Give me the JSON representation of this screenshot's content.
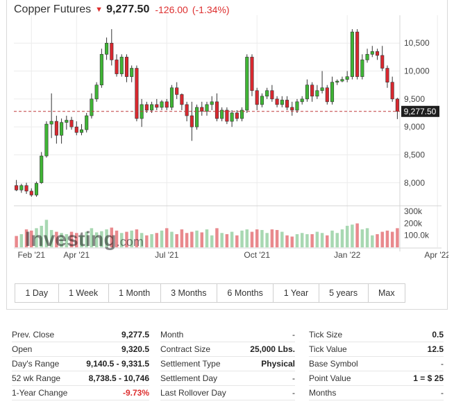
{
  "header": {
    "title": "Copper Futures",
    "arrow_icon": "down-arrow-icon",
    "price": "9,277.50",
    "change": "-126.00",
    "change_pct": "(-1.34%)"
  },
  "watermark": {
    "brand_main": "Investing",
    "brand_suffix": ".com"
  },
  "colors": {
    "up": "#3fb535",
    "down": "#d9282f",
    "volume_up": "#a8d8b2",
    "volume_down": "#e9898d",
    "last_price_line": "#c0393b",
    "last_price_tag": "#1e1e1e"
  },
  "chart_data": {
    "type": "candlestick",
    "title": "Copper Futures",
    "last_price": 9277.5,
    "last_price_label": "9,277.50",
    "y_ticks": [
      {
        "value": 8000,
        "label": "8,000"
      },
      {
        "value": 8500,
        "label": "8,500"
      },
      {
        "value": 9000,
        "label": "9,000"
      },
      {
        "value": 9500,
        "label": "9,500"
      },
      {
        "value": 10000,
        "label": "10,000"
      },
      {
        "value": 10500,
        "label": "10,500"
      }
    ],
    "y_range": [
      7600,
      10900
    ],
    "volume_ticks": [
      {
        "value": 100000,
        "label": "100.0k"
      },
      {
        "value": 200000,
        "label": "200k"
      },
      {
        "value": 300000,
        "label": "300k"
      }
    ],
    "volume_range": [
      0,
      330000
    ],
    "x_ticks": [
      {
        "index": 3,
        "label": "Feb '21"
      },
      {
        "index": 12,
        "label": "Apr '21"
      },
      {
        "index": 30,
        "label": "Jul '21"
      },
      {
        "index": 48,
        "label": "Oct '21"
      },
      {
        "index": 66,
        "label": "Jan '22"
      },
      {
        "index": 84,
        "label": "Apr '22"
      }
    ],
    "candles": [
      {
        "o": 7950,
        "h": 8050,
        "l": 7850,
        "c": 7870,
        "v": 95000
      },
      {
        "o": 7870,
        "h": 7980,
        "l": 7820,
        "c": 7950,
        "v": 110000
      },
      {
        "o": 7950,
        "h": 8000,
        "l": 7800,
        "c": 7850,
        "v": 150000
      },
      {
        "o": 7850,
        "h": 7900,
        "l": 7750,
        "c": 7780,
        "v": 140000
      },
      {
        "o": 7780,
        "h": 8020,
        "l": 7750,
        "c": 7990,
        "v": 160000
      },
      {
        "o": 8000,
        "h": 8550,
        "l": 7980,
        "c": 8480,
        "v": 180000
      },
      {
        "o": 8480,
        "h": 9100,
        "l": 8450,
        "c": 9050,
        "v": 230000
      },
      {
        "o": 9050,
        "h": 9600,
        "l": 8800,
        "c": 9100,
        "v": 145000
      },
      {
        "o": 9100,
        "h": 9200,
        "l": 8700,
        "c": 8850,
        "v": 130000
      },
      {
        "o": 8850,
        "h": 9150,
        "l": 8700,
        "c": 9080,
        "v": 120000
      },
      {
        "o": 9080,
        "h": 9200,
        "l": 8950,
        "c": 9120,
        "v": 110000
      },
      {
        "o": 9120,
        "h": 9180,
        "l": 8950,
        "c": 9000,
        "v": 130000
      },
      {
        "o": 9000,
        "h": 9100,
        "l": 8850,
        "c": 8900,
        "v": 120000
      },
      {
        "o": 8900,
        "h": 9050,
        "l": 8850,
        "c": 8950,
        "v": 100000
      },
      {
        "o": 8950,
        "h": 9250,
        "l": 8900,
        "c": 9200,
        "v": 130000
      },
      {
        "o": 9200,
        "h": 9600,
        "l": 9150,
        "c": 9500,
        "v": 160000
      },
      {
        "o": 9500,
        "h": 9800,
        "l": 9450,
        "c": 9750,
        "v": 125000
      },
      {
        "o": 9750,
        "h": 10400,
        "l": 9700,
        "c": 10300,
        "v": 135000
      },
      {
        "o": 10300,
        "h": 10600,
        "l": 10200,
        "c": 10500,
        "v": 150000
      },
      {
        "o": 10500,
        "h": 10750,
        "l": 10100,
        "c": 10200,
        "v": 165000
      },
      {
        "o": 10200,
        "h": 10300,
        "l": 9900,
        "c": 9950,
        "v": 140000
      },
      {
        "o": 9950,
        "h": 10300,
        "l": 9900,
        "c": 10250,
        "v": 120000
      },
      {
        "o": 10250,
        "h": 10300,
        "l": 9800,
        "c": 9900,
        "v": 130000
      },
      {
        "o": 9900,
        "h": 10100,
        "l": 9800,
        "c": 10050,
        "v": 140000
      },
      {
        "o": 10050,
        "h": 10100,
        "l": 9100,
        "c": 9150,
        "v": 150000
      },
      {
        "o": 9150,
        "h": 9500,
        "l": 9000,
        "c": 9400,
        "v": 120000
      },
      {
        "o": 9400,
        "h": 9450,
        "l": 9250,
        "c": 9300,
        "v": 100000
      },
      {
        "o": 9300,
        "h": 9450,
        "l": 9250,
        "c": 9400,
        "v": 110000
      },
      {
        "o": 9400,
        "h": 9500,
        "l": 9300,
        "c": 9350,
        "v": 120000
      },
      {
        "o": 9350,
        "h": 9480,
        "l": 9300,
        "c": 9450,
        "v": 140000
      },
      {
        "o": 9450,
        "h": 9500,
        "l": 9300,
        "c": 9350,
        "v": 160000
      },
      {
        "o": 9350,
        "h": 9750,
        "l": 9300,
        "c": 9700,
        "v": 130000
      },
      {
        "o": 9700,
        "h": 9800,
        "l": 9500,
        "c": 9580,
        "v": 110000
      },
      {
        "o": 9580,
        "h": 9600,
        "l": 9300,
        "c": 9400,
        "v": 150000
      },
      {
        "o": 9400,
        "h": 9450,
        "l": 9100,
        "c": 9200,
        "v": 120000
      },
      {
        "o": 9200,
        "h": 9450,
        "l": 8750,
        "c": 9000,
        "v": 130000
      },
      {
        "o": 9000,
        "h": 9400,
        "l": 8950,
        "c": 9350,
        "v": 140000
      },
      {
        "o": 9350,
        "h": 9450,
        "l": 9200,
        "c": 9280,
        "v": 125000
      },
      {
        "o": 9280,
        "h": 9450,
        "l": 9200,
        "c": 9400,
        "v": 150000
      },
      {
        "o": 9400,
        "h": 9550,
        "l": 9300,
        "c": 9450,
        "v": 100000
      },
      {
        "o": 9450,
        "h": 9600,
        "l": 9100,
        "c": 9150,
        "v": 160000
      },
      {
        "o": 9150,
        "h": 9350,
        "l": 9100,
        "c": 9300,
        "v": 120000
      },
      {
        "o": 9300,
        "h": 9350,
        "l": 9050,
        "c": 9100,
        "v": 110000
      },
      {
        "o": 9100,
        "h": 9300,
        "l": 9000,
        "c": 9250,
        "v": 130000
      },
      {
        "o": 9250,
        "h": 9300,
        "l": 9100,
        "c": 9150,
        "v": 100000
      },
      {
        "o": 9150,
        "h": 9350,
        "l": 9100,
        "c": 9300,
        "v": 140000
      },
      {
        "o": 9300,
        "h": 10300,
        "l": 9250,
        "c": 10250,
        "v": 150000
      },
      {
        "o": 10250,
        "h": 10300,
        "l": 9550,
        "c": 9650,
        "v": 130000
      },
      {
        "o": 9650,
        "h": 9700,
        "l": 9300,
        "c": 9400,
        "v": 150000
      },
      {
        "o": 9400,
        "h": 9600,
        "l": 9350,
        "c": 9550,
        "v": 145000
      },
      {
        "o": 9550,
        "h": 9700,
        "l": 9500,
        "c": 9650,
        "v": 120000
      },
      {
        "o": 9650,
        "h": 9750,
        "l": 9450,
        "c": 9500,
        "v": 150000
      },
      {
        "o": 9500,
        "h": 9550,
        "l": 9350,
        "c": 9400,
        "v": 145000
      },
      {
        "o": 9400,
        "h": 9550,
        "l": 9350,
        "c": 9480,
        "v": 130000
      },
      {
        "o": 9480,
        "h": 9550,
        "l": 9300,
        "c": 9350,
        "v": 100000
      },
      {
        "o": 9350,
        "h": 9450,
        "l": 9200,
        "c": 9300,
        "v": 90000
      },
      {
        "o": 9300,
        "h": 9500,
        "l": 9250,
        "c": 9450,
        "v": 110000
      },
      {
        "o": 9450,
        "h": 9550,
        "l": 9400,
        "c": 9500,
        "v": 120000
      },
      {
        "o": 9500,
        "h": 9850,
        "l": 9450,
        "c": 9750,
        "v": 110000
      },
      {
        "o": 9750,
        "h": 9800,
        "l": 9450,
        "c": 9550,
        "v": 110000
      },
      {
        "o": 9550,
        "h": 9750,
        "l": 9500,
        "c": 9650,
        "v": 130000
      },
      {
        "o": 9650,
        "h": 10000,
        "l": 9600,
        "c": 9700,
        "v": 120000
      },
      {
        "o": 9700,
        "h": 9750,
        "l": 9400,
        "c": 9450,
        "v": 100000
      },
      {
        "o": 9450,
        "h": 9900,
        "l": 9400,
        "c": 9800,
        "v": 140000
      },
      {
        "o": 9800,
        "h": 9850,
        "l": 9750,
        "c": 9820,
        "v": 120000
      },
      {
        "o": 9820,
        "h": 9900,
        "l": 9800,
        "c": 9850,
        "v": 150000
      },
      {
        "o": 9850,
        "h": 10000,
        "l": 9800,
        "c": 9900,
        "v": 180000
      },
      {
        "o": 9900,
        "h": 10750,
        "l": 9850,
        "c": 10700,
        "v": 190000
      },
      {
        "o": 10700,
        "h": 10750,
        "l": 9850,
        "c": 9900,
        "v": 200000
      },
      {
        "o": 9900,
        "h": 10300,
        "l": 9850,
        "c": 10200,
        "v": 150000
      },
      {
        "o": 10200,
        "h": 10400,
        "l": 10150,
        "c": 10300,
        "v": 160000
      },
      {
        "o": 10300,
        "h": 10450,
        "l": 10250,
        "c": 10350,
        "v": 100000
      },
      {
        "o": 10350,
        "h": 10400,
        "l": 10200,
        "c": 10280,
        "v": 110000
      },
      {
        "o": 10280,
        "h": 10450,
        "l": 10000,
        "c": 10050,
        "v": 130000
      },
      {
        "o": 10050,
        "h": 10100,
        "l": 9700,
        "c": 9800,
        "v": 140000
      },
      {
        "o": 9800,
        "h": 9900,
        "l": 9450,
        "c": 9500,
        "v": 130000
      },
      {
        "o": 9500,
        "h": 9520,
        "l": 9140,
        "c": 9278,
        "v": 160000
      }
    ]
  },
  "range_buttons": [
    "1 Day",
    "1 Week",
    "1 Month",
    "3 Months",
    "6 Months",
    "1 Year",
    "5 years",
    "Max"
  ],
  "stats": {
    "col1": [
      {
        "label": "Prev. Close",
        "value": "9,277.5"
      },
      {
        "label": "Open",
        "value": "9,320.5"
      },
      {
        "label": "Day's Range",
        "value": "9,140.5 - 9,331.5"
      },
      {
        "label": "52 wk Range",
        "value": "8,738.5 - 10,746"
      },
      {
        "label": "1-Year Change",
        "value": "-9.73%"
      }
    ],
    "col2": [
      {
        "label": "Month",
        "value": "-"
      },
      {
        "label": "Contract Size",
        "value": "25,000 Lbs."
      },
      {
        "label": "Settlement Type",
        "value": "Physical"
      },
      {
        "label": "Settlement Day",
        "value": "-"
      },
      {
        "label": "Last Rollover Day",
        "value": "-"
      }
    ],
    "col3": [
      {
        "label": "Tick Size",
        "value": "0.5"
      },
      {
        "label": "Tick Value",
        "value": "12.5"
      },
      {
        "label": "Base Symbol",
        "value": "-"
      },
      {
        "label": "Point Value",
        "value": "1 = $ 25"
      },
      {
        "label": "Months",
        "value": "-"
      }
    ]
  }
}
